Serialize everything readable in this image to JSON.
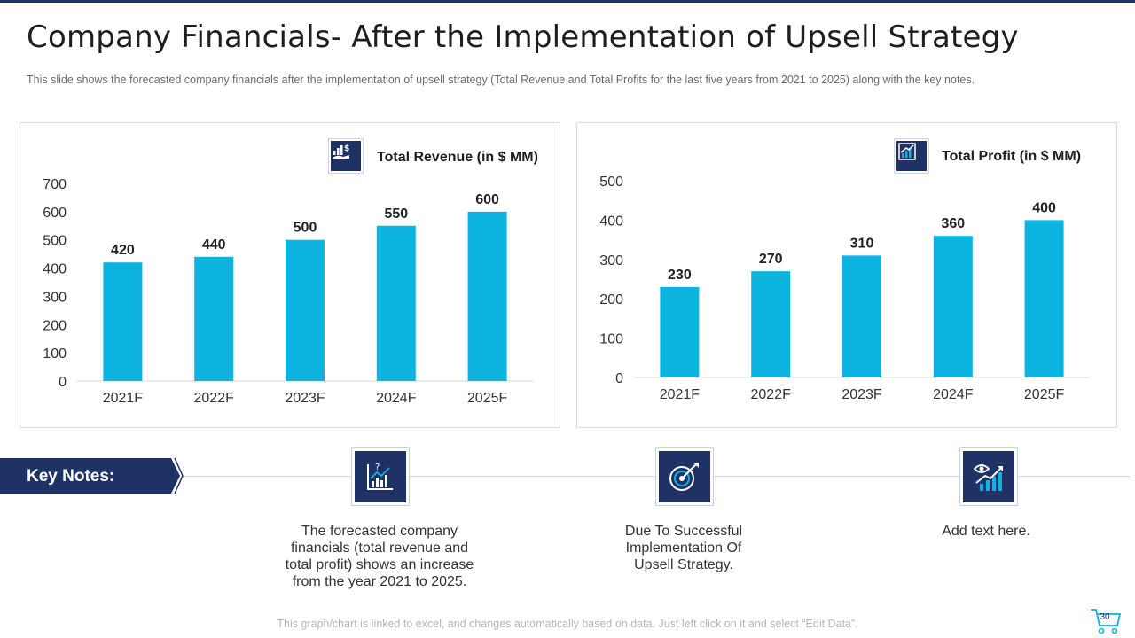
{
  "header": {
    "title": "Company Financials- After the Implementation of Upsell Strategy",
    "subtitle": "This slide shows the forecasted company financials after the implementation of upsell strategy (Total Revenue  and Total Profits for the last five years from 2021 to 2025) along with the key notes."
  },
  "chart_data": [
    {
      "type": "bar",
      "title": "Total Revenue (in $ MM)",
      "categories": [
        "2021F",
        "2022F",
        "2023F",
        "2024F",
        "2025F"
      ],
      "values": [
        420,
        440,
        500,
        550,
        600
      ],
      "ylim": [
        0,
        700
      ],
      "yticks": [
        0,
        100,
        200,
        300,
        400,
        500,
        600,
        700
      ],
      "color": "#0db4e0",
      "grid": false
    },
    {
      "type": "bar",
      "title": "Total Profit (in $ MM)",
      "categories": [
        "2021F",
        "2022F",
        "2023F",
        "2024F",
        "2025F"
      ],
      "values": [
        230,
        270,
        310,
        360,
        400
      ],
      "ylim": [
        0,
        500
      ],
      "yticks": [
        0,
        100,
        200,
        300,
        400,
        500
      ],
      "color": "#0db4e0",
      "grid": false
    }
  ],
  "key_notes": {
    "label": "Key Notes:",
    "notes": [
      {
        "icon": "chart-question-icon",
        "text": "The forecasted company financials (total revenue and total profit) shows an increase from the year 2021 to 2025."
      },
      {
        "icon": "target-arrow-icon",
        "text": "Due To Successful Implementation Of Upsell Strategy."
      },
      {
        "icon": "eye-growth-icon",
        "text": "Add text here."
      }
    ]
  },
  "footer": {
    "note": "This graph/chart is linked to excel, and changes automatically based on data. Just left click on it and select “Edit Data”.",
    "page_number": "30"
  },
  "colors": {
    "accent": "#1f3266",
    "bar": "#0db4e0"
  }
}
